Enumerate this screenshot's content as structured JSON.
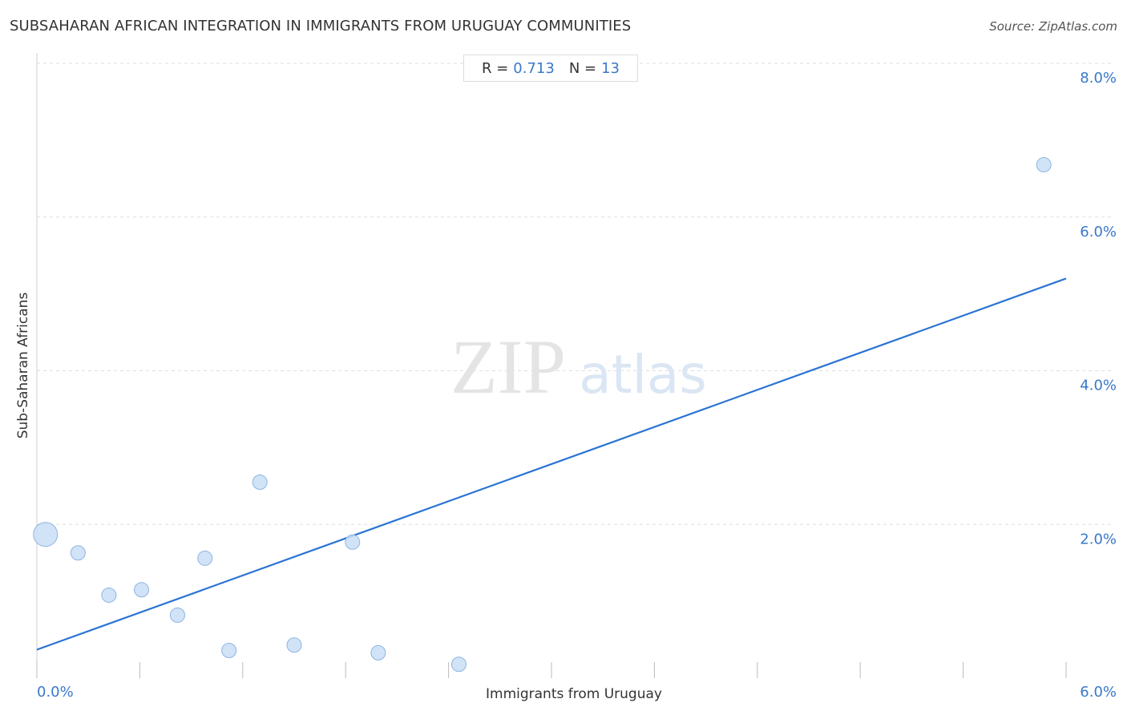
{
  "header": {
    "title": "SUBSAHARAN AFRICAN INTEGRATION IN IMMIGRANTS FROM URUGUAY COMMUNITIES",
    "source": "Source: ZipAtlas.com"
  },
  "stats": {
    "r_label": "R =",
    "r_value": "0.713",
    "n_label": "N =",
    "n_value": "13"
  },
  "watermark": {
    "zip": "ZIP",
    "atlas": "atlas"
  },
  "colors": {
    "point_fill": "#c9def5",
    "point_stroke": "#8db4e2",
    "trend_line": "#2b74d4",
    "tick_label": "#3a78c9",
    "grid": "#dddddd"
  },
  "chart_data": {
    "type": "scatter",
    "title": "SUBSAHARAN AFRICAN INTEGRATION IN IMMIGRANTS FROM URUGUAY COMMUNITIES",
    "xlabel": "Immigrants from Uruguay",
    "ylabel": "Sub-Saharan Africans",
    "xlim": [
      0,
      6.0
    ],
    "ylim": [
      0,
      8.0
    ],
    "x_tick_labels": [
      {
        "value": 0,
        "label": "0.0%"
      },
      {
        "value": 6.0,
        "label": "6.0%"
      }
    ],
    "y_tick_labels": [
      {
        "value": 2.0,
        "label": "2.0%"
      },
      {
        "value": 4.0,
        "label": "4.0%"
      },
      {
        "value": 6.0,
        "label": "6.0%"
      },
      {
        "value": 8.0,
        "label": "8.0%"
      }
    ],
    "grid": true,
    "points": [
      {
        "x": 0.05,
        "y": 1.87,
        "size": "large"
      },
      {
        "x": 0.24,
        "y": 1.63,
        "size": "normal"
      },
      {
        "x": 0.42,
        "y": 1.08,
        "size": "normal"
      },
      {
        "x": 0.61,
        "y": 1.15,
        "size": "normal"
      },
      {
        "x": 0.82,
        "y": 0.82,
        "size": "normal"
      },
      {
        "x": 0.98,
        "y": 1.56,
        "size": "normal"
      },
      {
        "x": 1.12,
        "y": 0.36,
        "size": "normal"
      },
      {
        "x": 1.3,
        "y": 2.55,
        "size": "normal"
      },
      {
        "x": 1.5,
        "y": 0.43,
        "size": "normal"
      },
      {
        "x": 1.84,
        "y": 1.77,
        "size": "normal"
      },
      {
        "x": 1.99,
        "y": 0.33,
        "size": "normal"
      },
      {
        "x": 2.46,
        "y": 0.18,
        "size": "normal"
      },
      {
        "x": 5.87,
        "y": 6.68,
        "size": "normal"
      }
    ],
    "trend_line": {
      "x0": 0,
      "y0": 0.37,
      "x1": 6.0,
      "y1": 5.2
    }
  }
}
